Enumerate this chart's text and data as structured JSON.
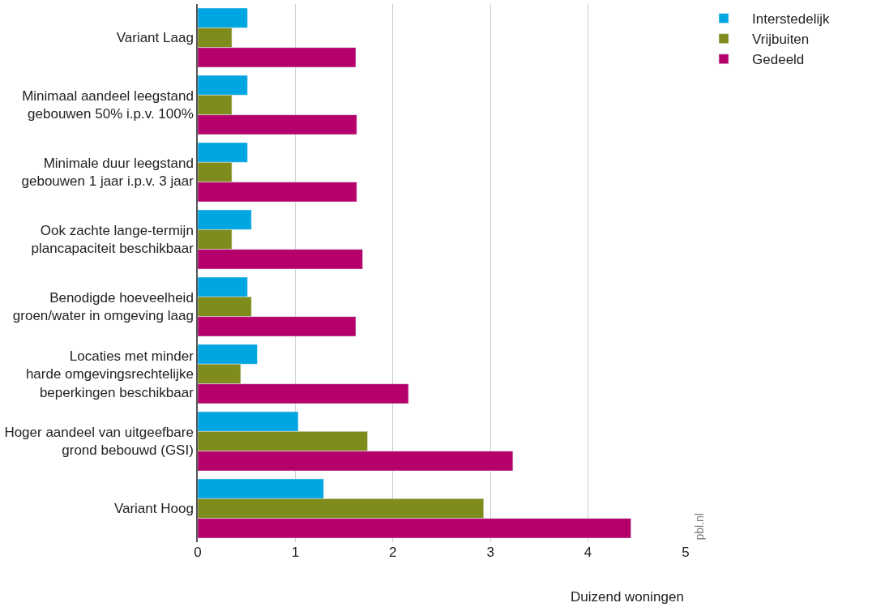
{
  "chart_data": {
    "type": "bar",
    "orientation": "horizontal",
    "xlabel": "Duizend woningen",
    "categories": [
      "Variant Laag",
      "Minimaal aandeel leegstand\ngebouwen 50% i.p.v. 100%",
      "Minimale duur leegstand\ngebouwen 1 jaar i.p.v. 3 jaar",
      "Ook zachte lange-termijn\nplancapaciteit beschikbaar",
      "Benodigde hoeveelheid\ngroen/water in omgeving laag",
      "Locaties met minder\nharde omgevingsrechtelijke\nbeperkingen beschikbaar",
      "Hoger aandeel van uitgeefbare\ngrond bebouwd (GSI)",
      "Variant Hoog"
    ],
    "series": [
      {
        "name": "Interstedelijk",
        "color": "#00a6e2",
        "values": [
          0.51,
          0.51,
          0.51,
          0.55,
          0.51,
          0.61,
          1.03,
          1.29
        ]
      },
      {
        "name": "Vrijbuiten",
        "color": "#7f8c1c",
        "values": [
          0.35,
          0.35,
          0.35,
          0.35,
          0.55,
          0.44,
          1.74,
          2.93
        ]
      },
      {
        "name": "Gedeeld",
        "color": "#b5006b",
        "values": [
          1.62,
          1.63,
          1.63,
          1.69,
          1.62,
          2.16,
          3.23,
          4.44
        ]
      }
    ],
    "xlim": [
      0,
      5
    ],
    "xticks": [
      0,
      1,
      2,
      3,
      4,
      5
    ],
    "grid": "x",
    "legend": "top right",
    "annotations": [
      "pbl.nl"
    ]
  }
}
